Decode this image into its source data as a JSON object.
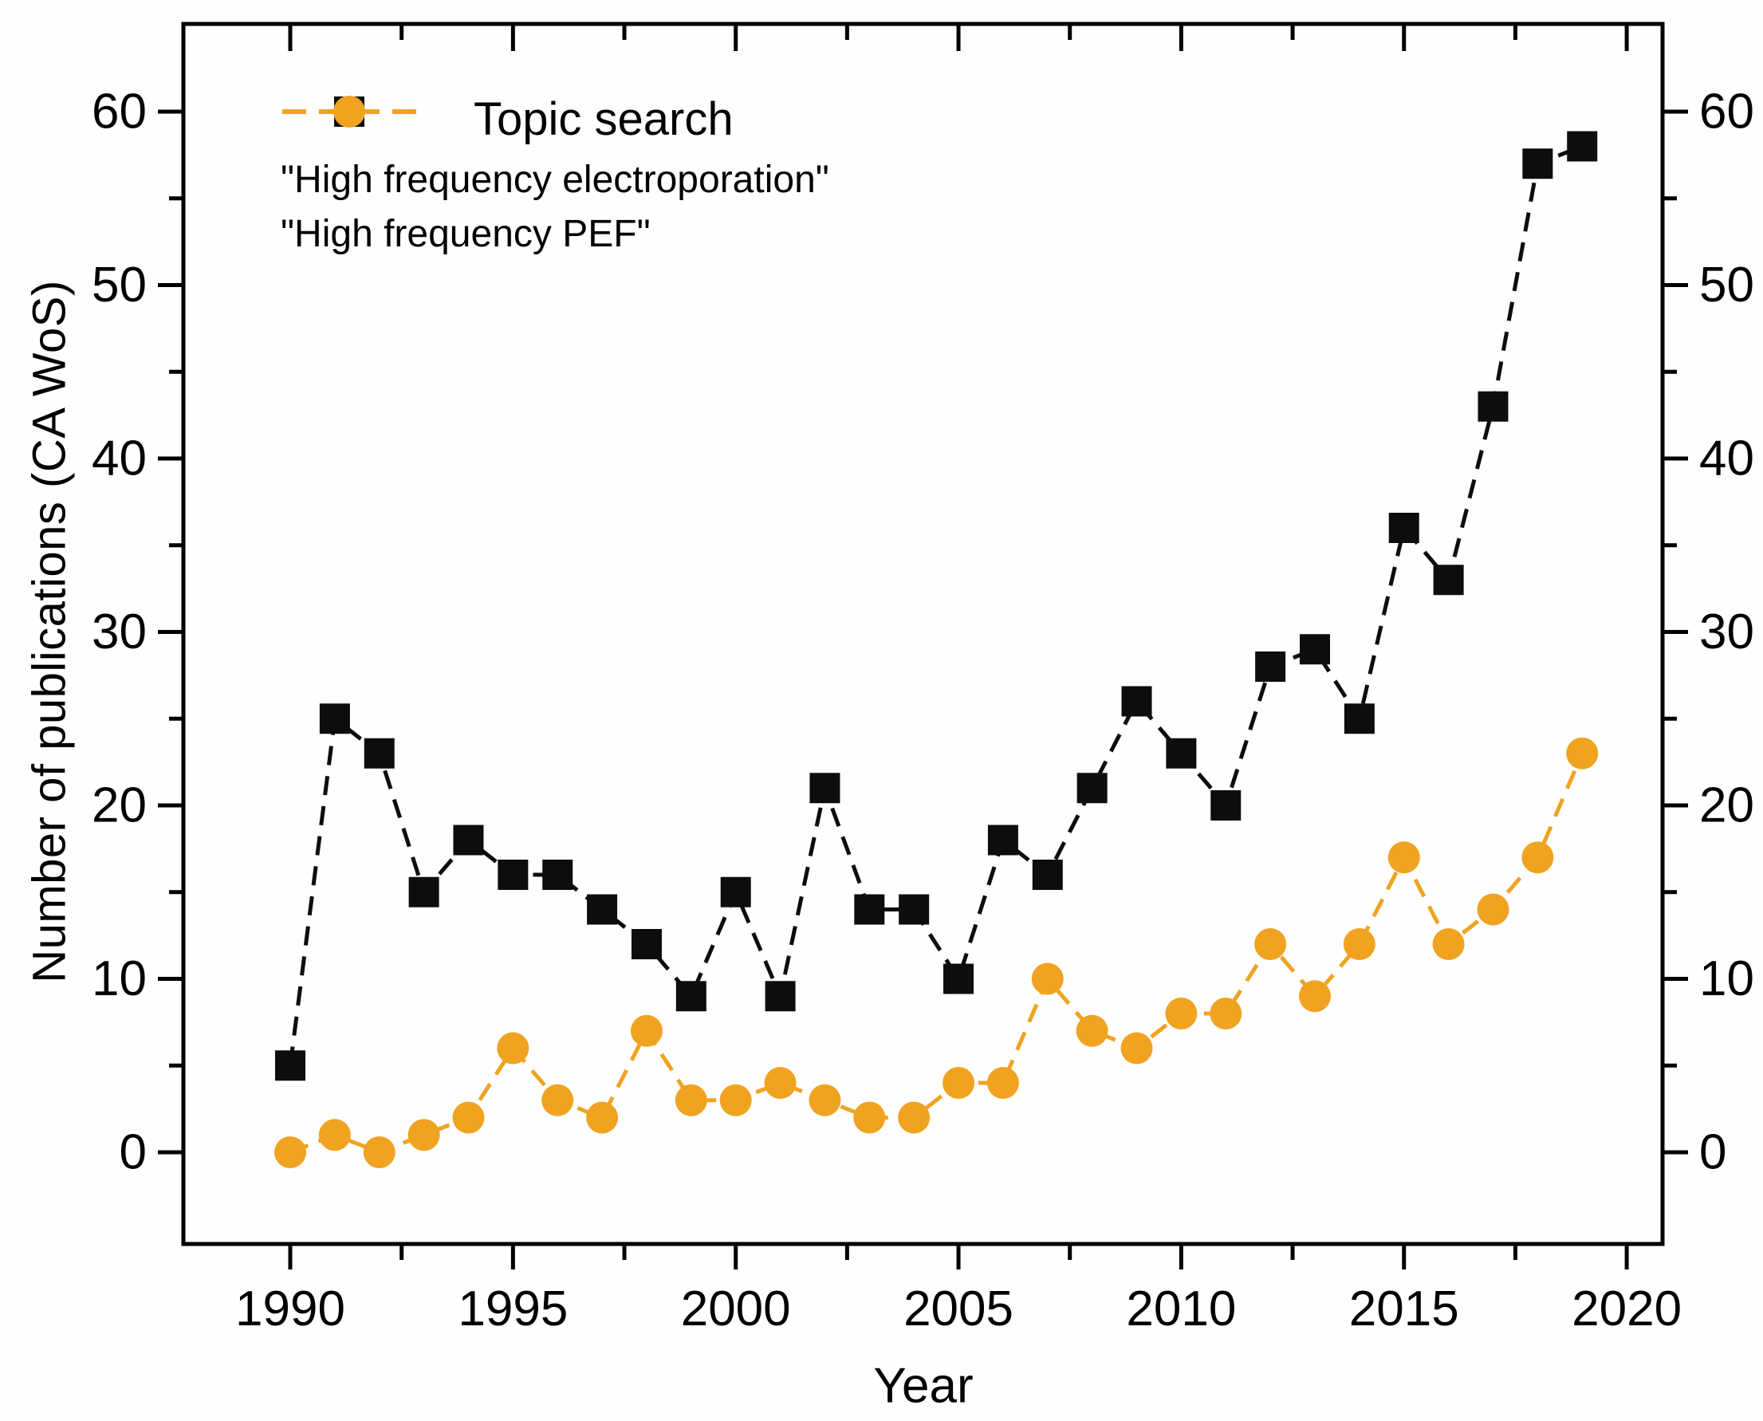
{
  "figure": {
    "background": "#fefefe",
    "axis_color": "#000000",
    "text_color": "#000000"
  },
  "legend": {
    "title": "Topic search",
    "entries": [
      {
        "label": "\"High frequency electroporation\"",
        "marker": "square",
        "color": "#0d0d0d"
      },
      {
        "label": "\"High frequency PEF\"",
        "marker": "circle",
        "color": "#f0a321"
      }
    ]
  },
  "chart_data": {
    "type": "line",
    "title": "",
    "xlabel": "Year",
    "ylabel": "Number of publications (CA WoS)",
    "x": [
      1990,
      1991,
      1992,
      1993,
      1994,
      1995,
      1996,
      1997,
      1998,
      1999,
      2000,
      2001,
      2002,
      2003,
      2004,
      2005,
      2006,
      2007,
      2008,
      2009,
      2010,
      2011,
      2012,
      2013,
      2014,
      2015,
      2016,
      2017,
      2018,
      2019
    ],
    "series": [
      {
        "name": "\"High frequency electroporation\"",
        "color": "#0d0d0d",
        "marker": "square",
        "linestyle": "dashed",
        "values": [
          5,
          25,
          23,
          15,
          18,
          16,
          16,
          14,
          12,
          9,
          15,
          9,
          21,
          14,
          14,
          10,
          18,
          16,
          21,
          26,
          23,
          20,
          28,
          29,
          25,
          36,
          33,
          43,
          57,
          58
        ]
      },
      {
        "name": "\"High frequency PEF\"",
        "color": "#f0a321",
        "marker": "circle",
        "linestyle": "dashed",
        "values": [
          0,
          1,
          0,
          1,
          2,
          6,
          3,
          2,
          7,
          3,
          3,
          4,
          3,
          2,
          2,
          4,
          4,
          10,
          7,
          6,
          8,
          8,
          12,
          9,
          12,
          17,
          12,
          14,
          17,
          23
        ]
      }
    ],
    "xticks": [
      1990,
      1995,
      2000,
      2005,
      2010,
      2015,
      2020
    ],
    "yticks": [
      0,
      10,
      20,
      30,
      40,
      50,
      60
    ],
    "minor_xtick_step": 2.5,
    "minor_ytick_step": 5,
    "xlim": [
      1987.6,
      2020.8
    ],
    "ylim": [
      -5.3,
      65.1
    ],
    "grid": false,
    "right_axis": "mirror of left axis",
    "legend_position": "upper-left-inside"
  }
}
